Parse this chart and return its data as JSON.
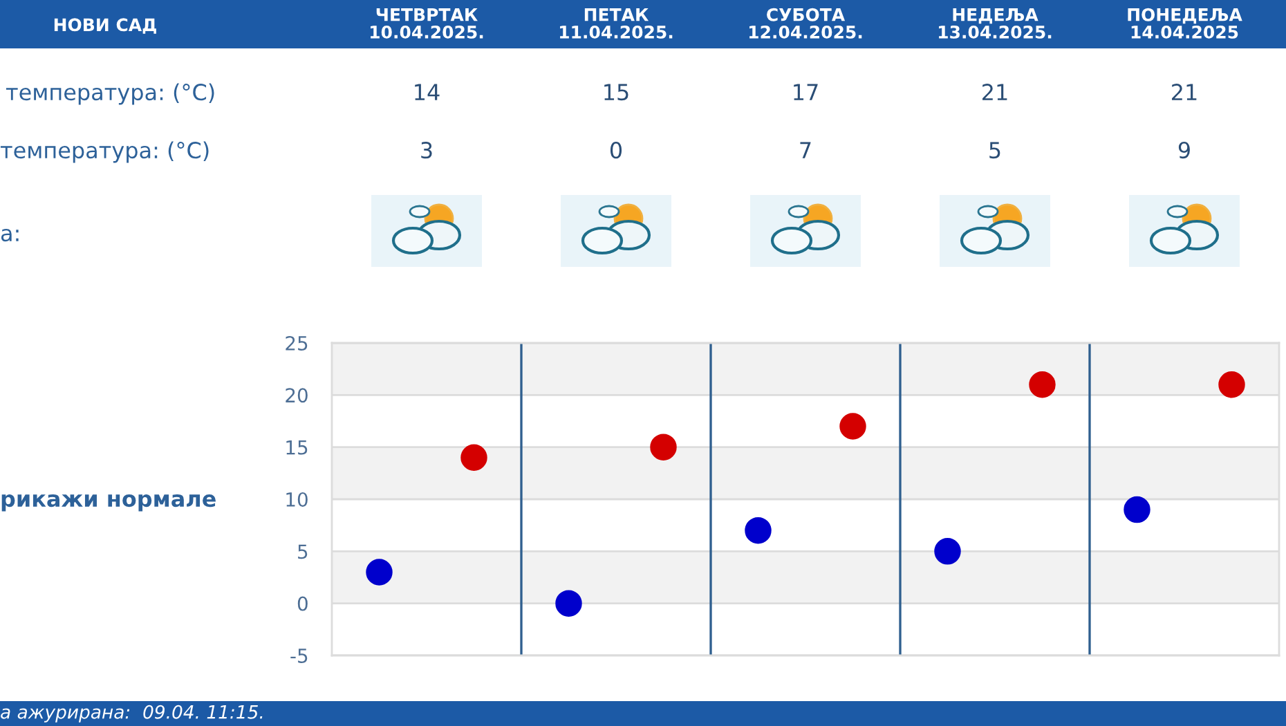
{
  "chart_data": {
    "type": "scatter",
    "title": "НОВИ САД",
    "categories": [
      null,
      null,
      null,
      null,
      null
    ],
    "series": [
      {
        "color": "#d40000",
        "values": [
          14,
          15,
          17,
          21,
          21
        ]
      },
      {
        "color": "#0000cc",
        "values": [
          3,
          0,
          7,
          5,
          9
        ]
      }
    ],
    "ylim": [
      -5,
      25
    ],
    "yticks": [
      -5,
      0,
      5,
      10,
      15,
      20,
      25
    ],
    "grid": true,
    "marker": "circle",
    "data_labels": true,
    "tick_labels": "y",
    "bands": [
      {
        "axis": "y",
        "from": 20,
        "to": 25,
        "color": "#f2f2f2"
      },
      {
        "axis": "y",
        "from": 10,
        "to": 15,
        "color": "#f2f2f2"
      },
      {
        "axis": "y",
        "from": 0,
        "to": 5,
        "color": "#f2f2f2"
      }
    ],
    "annotations": [
      "ЧЕТВРТАК\n10.04.2025.",
      "ПЕТАК\n11.04.2025.",
      "СУБОТА\n12.04.2025.",
      "НЕДЕЉА\n13.04.2025.",
      "ПОНЕДЕЉА\n14.04.2025",
      "температура: (°C)",
      "температура: (°C)",
      "а:",
      "рикажи нормале",
      "а ажурирана:  09.04. 11:15."
    ]
  }
}
